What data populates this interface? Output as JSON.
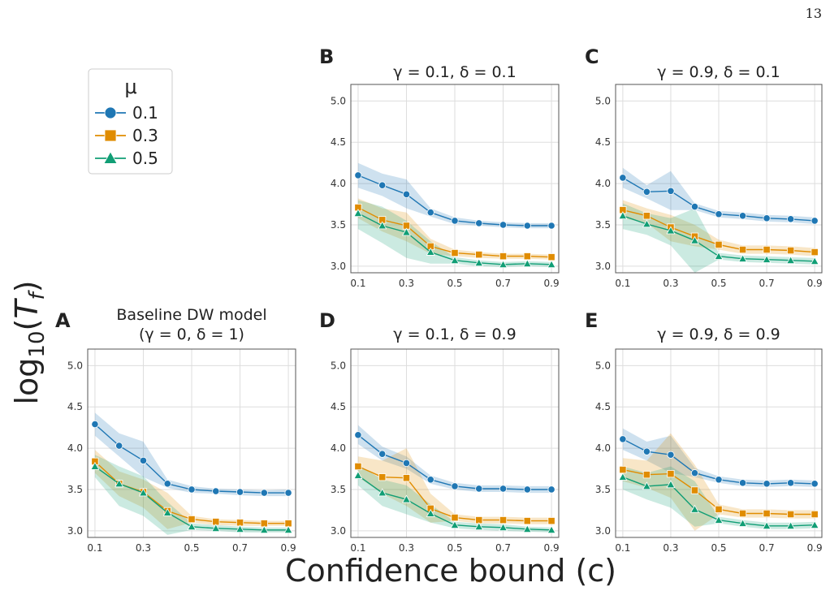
{
  "page_number": "13",
  "figure": {
    "ylabel_base": "log",
    "ylabel_sub": "10",
    "ylabel_var": "T",
    "ylabel_var_sub": "f",
    "xlabel": "Confidence bound (c)"
  },
  "legend": {
    "title": "μ",
    "entries": [
      {
        "label": "0.1",
        "color": "#1f77b4",
        "marker": "circle"
      },
      {
        "label": "0.3",
        "color": "#e08c00",
        "marker": "square"
      },
      {
        "label": "0.5",
        "color": "#119e75",
        "marker": "triangle"
      }
    ]
  },
  "chart_data": [
    {
      "type": "line",
      "panel": "A",
      "title": [
        "Baseline DW model",
        "(γ = 0, δ = 1)"
      ],
      "x": [
        0.1,
        0.2,
        0.3,
        0.4,
        0.5,
        0.6,
        0.7,
        0.8,
        0.9
      ],
      "xticks": [
        "0.1",
        "0.3",
        "0.5",
        "0.7",
        "0.9"
      ],
      "yticks": [
        "3.0",
        "3.5",
        "4.0",
        "4.5",
        "5.0"
      ],
      "xlim": [
        0.07,
        0.93
      ],
      "ylim": [
        2.92,
        5.2
      ],
      "grid": true,
      "series": [
        {
          "name": "0.1",
          "values": [
            4.29,
            4.03,
            3.85,
            3.57,
            3.5,
            3.48,
            3.47,
            3.46,
            3.46
          ],
          "band_low": [
            4.15,
            3.9,
            3.65,
            3.52,
            3.46,
            3.45,
            3.43,
            3.42,
            3.42
          ],
          "band_high": [
            4.43,
            4.18,
            4.08,
            3.62,
            3.54,
            3.51,
            3.5,
            3.49,
            3.5
          ]
        },
        {
          "name": "0.3",
          "values": [
            3.84,
            3.57,
            3.47,
            3.24,
            3.14,
            3.11,
            3.1,
            3.09,
            3.09
          ],
          "band_low": [
            3.7,
            3.42,
            3.28,
            3.02,
            3.1,
            3.07,
            3.06,
            3.06,
            3.06
          ],
          "band_high": [
            3.98,
            3.72,
            3.62,
            3.46,
            3.18,
            3.14,
            3.13,
            3.12,
            3.12
          ]
        },
        {
          "name": "0.5",
          "values": [
            3.78,
            3.57,
            3.46,
            3.22,
            3.05,
            3.03,
            3.02,
            3.01,
            3.01
          ],
          "band_low": [
            3.65,
            3.3,
            3.18,
            2.95,
            3.01,
            3.0,
            2.98,
            2.98,
            2.98
          ],
          "band_high": [
            3.92,
            3.78,
            3.66,
            3.35,
            3.09,
            3.07,
            3.05,
            3.04,
            3.04
          ]
        }
      ]
    },
    {
      "type": "line",
      "panel": "B",
      "title": [
        "γ = 0.1, δ = 0.1"
      ],
      "x": [
        0.1,
        0.2,
        0.3,
        0.4,
        0.5,
        0.6,
        0.7,
        0.8,
        0.9
      ],
      "xticks": [
        "0.1",
        "0.3",
        "0.5",
        "0.7",
        "0.9"
      ],
      "yticks": [
        "3.0",
        "3.5",
        "4.0",
        "4.5",
        "5.0"
      ],
      "xlim": [
        0.07,
        0.93
      ],
      "ylim": [
        2.92,
        5.2
      ],
      "grid": true,
      "series": [
        {
          "name": "0.1",
          "values": [
            4.1,
            3.98,
            3.87,
            3.65,
            3.55,
            3.52,
            3.5,
            3.49,
            3.49
          ],
          "band_low": [
            3.95,
            3.85,
            3.7,
            3.6,
            3.51,
            3.49,
            3.47,
            3.46,
            3.46
          ],
          "band_high": [
            4.25,
            4.12,
            4.05,
            3.7,
            3.59,
            3.55,
            3.53,
            3.52,
            3.52
          ]
        },
        {
          "name": "0.3",
          "values": [
            3.71,
            3.56,
            3.49,
            3.24,
            3.16,
            3.14,
            3.12,
            3.12,
            3.11
          ],
          "band_low": [
            3.58,
            3.42,
            3.3,
            3.15,
            3.12,
            3.1,
            3.09,
            3.09,
            3.08
          ],
          "band_high": [
            3.82,
            3.7,
            3.65,
            3.33,
            3.2,
            3.17,
            3.15,
            3.15,
            3.14
          ]
        },
        {
          "name": "0.5",
          "values": [
            3.64,
            3.49,
            3.41,
            3.17,
            3.07,
            3.04,
            3.02,
            3.03,
            3.02
          ],
          "band_low": [
            3.45,
            3.28,
            3.1,
            3.03,
            3.03,
            3.0,
            2.99,
            3.0,
            2.99
          ],
          "band_high": [
            3.8,
            3.72,
            3.55,
            3.3,
            3.11,
            3.07,
            3.05,
            3.06,
            3.05
          ]
        }
      ]
    },
    {
      "type": "line",
      "panel": "C",
      "title": [
        "γ = 0.9, δ = 0.1"
      ],
      "x": [
        0.1,
        0.2,
        0.3,
        0.4,
        0.5,
        0.6,
        0.7,
        0.8,
        0.9
      ],
      "xticks": [
        "0.1",
        "0.3",
        "0.5",
        "0.7",
        "0.9"
      ],
      "yticks": [
        "3.0",
        "3.5",
        "4.0",
        "4.5",
        "5.0"
      ],
      "xlim": [
        0.07,
        0.93
      ],
      "ylim": [
        2.92,
        5.2
      ],
      "grid": true,
      "series": [
        {
          "name": "0.1",
          "values": [
            4.07,
            3.9,
            3.91,
            3.72,
            3.63,
            3.61,
            3.58,
            3.57,
            3.55
          ],
          "band_low": [
            3.95,
            3.82,
            3.68,
            3.68,
            3.59,
            3.57,
            3.54,
            3.53,
            3.51
          ],
          "band_high": [
            4.19,
            3.98,
            4.15,
            3.76,
            3.67,
            3.65,
            3.62,
            3.61,
            3.59
          ]
        },
        {
          "name": "0.3",
          "values": [
            3.68,
            3.61,
            3.47,
            3.36,
            3.26,
            3.2,
            3.2,
            3.19,
            3.17
          ],
          "band_low": [
            3.58,
            3.52,
            3.3,
            3.24,
            3.2,
            3.15,
            3.15,
            3.14,
            3.12
          ],
          "band_high": [
            3.8,
            3.7,
            3.62,
            3.5,
            3.32,
            3.25,
            3.25,
            3.24,
            3.22
          ]
        },
        {
          "name": "0.5",
          "values": [
            3.61,
            3.51,
            3.43,
            3.31,
            3.12,
            3.09,
            3.08,
            3.07,
            3.06
          ],
          "band_low": [
            3.45,
            3.38,
            3.25,
            2.92,
            3.08,
            3.05,
            3.04,
            3.03,
            3.02
          ],
          "band_high": [
            3.76,
            3.64,
            3.58,
            3.7,
            3.16,
            3.13,
            3.12,
            3.11,
            3.1
          ]
        }
      ]
    },
    {
      "type": "line",
      "panel": "D",
      "title": [
        "γ = 0.1, δ = 0.9"
      ],
      "x": [
        0.1,
        0.2,
        0.3,
        0.4,
        0.5,
        0.6,
        0.7,
        0.8,
        0.9
      ],
      "xticks": [
        "0.1",
        "0.3",
        "0.5",
        "0.7",
        "0.9"
      ],
      "yticks": [
        "3.0",
        "3.5",
        "4.0",
        "4.5",
        "5.0"
      ],
      "xlim": [
        0.07,
        0.93
      ],
      "ylim": [
        2.92,
        5.2
      ],
      "grid": true,
      "series": [
        {
          "name": "0.1",
          "values": [
            4.16,
            3.93,
            3.82,
            3.62,
            3.54,
            3.51,
            3.51,
            3.5,
            3.5
          ],
          "band_low": [
            4.05,
            3.85,
            3.75,
            3.57,
            3.5,
            3.47,
            3.47,
            3.46,
            3.46
          ],
          "band_high": [
            4.28,
            4.02,
            3.9,
            3.67,
            3.58,
            3.55,
            3.55,
            3.54,
            3.54
          ]
        },
        {
          "name": "0.3",
          "values": [
            3.78,
            3.65,
            3.64,
            3.27,
            3.16,
            3.13,
            3.13,
            3.12,
            3.12
          ],
          "band_low": [
            3.65,
            3.45,
            3.3,
            3.1,
            3.12,
            3.09,
            3.09,
            3.08,
            3.08
          ],
          "band_high": [
            3.9,
            3.85,
            4.0,
            3.45,
            3.2,
            3.17,
            3.17,
            3.16,
            3.16
          ]
        },
        {
          "name": "0.5",
          "values": [
            3.67,
            3.46,
            3.38,
            3.21,
            3.07,
            3.05,
            3.04,
            3.02,
            3.01
          ],
          "band_low": [
            3.55,
            3.3,
            3.2,
            3.1,
            3.03,
            3.01,
            3.0,
            2.99,
            2.98
          ],
          "band_high": [
            3.8,
            3.62,
            3.55,
            3.32,
            3.11,
            3.09,
            3.08,
            3.05,
            3.04
          ]
        }
      ]
    },
    {
      "type": "line",
      "panel": "E",
      "title": [
        "γ = 0.9, δ = 0.9"
      ],
      "x": [
        0.1,
        0.2,
        0.3,
        0.4,
        0.5,
        0.6,
        0.7,
        0.8,
        0.9
      ],
      "xticks": [
        "0.1",
        "0.3",
        "0.5",
        "0.7",
        "0.9"
      ],
      "yticks": [
        "3.0",
        "3.5",
        "4.0",
        "4.5",
        "5.0"
      ],
      "xlim": [
        0.07,
        0.93
      ],
      "ylim": [
        2.92,
        5.2
      ],
      "grid": true,
      "series": [
        {
          "name": "0.1",
          "values": [
            4.11,
            3.96,
            3.92,
            3.7,
            3.62,
            3.58,
            3.57,
            3.58,
            3.57
          ],
          "band_low": [
            3.98,
            3.85,
            3.7,
            3.65,
            3.58,
            3.54,
            3.53,
            3.54,
            3.53
          ],
          "band_high": [
            4.24,
            4.08,
            4.15,
            3.76,
            3.66,
            3.62,
            3.61,
            3.62,
            3.61
          ]
        },
        {
          "name": "0.3",
          "values": [
            3.74,
            3.68,
            3.69,
            3.49,
            3.26,
            3.21,
            3.21,
            3.2,
            3.2
          ],
          "band_low": [
            3.6,
            3.52,
            3.4,
            3.0,
            3.2,
            3.16,
            3.16,
            3.15,
            3.15
          ],
          "band_high": [
            3.88,
            3.85,
            4.18,
            3.8,
            3.32,
            3.26,
            3.26,
            3.25,
            3.25
          ]
        },
        {
          "name": "0.5",
          "values": [
            3.65,
            3.54,
            3.56,
            3.26,
            3.13,
            3.09,
            3.06,
            3.06,
            3.07
          ],
          "band_low": [
            3.5,
            3.38,
            3.28,
            3.05,
            3.09,
            3.05,
            3.02,
            3.02,
            3.03
          ],
          "band_high": [
            3.78,
            3.7,
            3.78,
            3.6,
            3.17,
            3.13,
            3.1,
            3.1,
            3.11
          ]
        }
      ]
    }
  ]
}
